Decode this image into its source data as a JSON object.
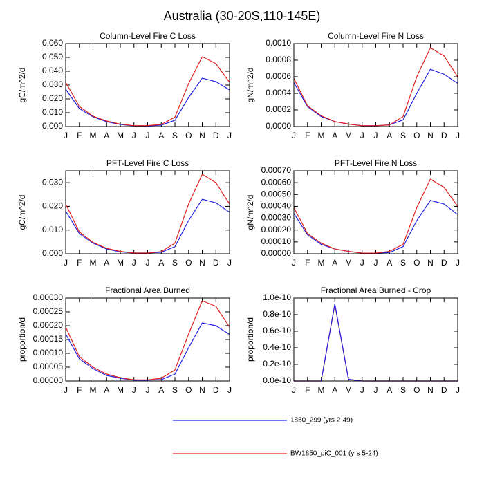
{
  "title": "Australia (30-20S,110-145E)",
  "legend": [
    {
      "name": "1850_299 (yrs 2-49)",
      "color": "#2020e0"
    },
    {
      "name": "BW1850_piC_001 (yrs 5-24)",
      "color": "#e02020"
    }
  ],
  "chart_data": [
    {
      "type": "line",
      "title": "Column-Level Fire C Loss",
      "y_label": "gC/m^2/d",
      "categories": [
        "J",
        "F",
        "M",
        "A",
        "M",
        "J",
        "J",
        "A",
        "S",
        "O",
        "N",
        "D",
        "J"
      ],
      "ylim": [
        0,
        0.06
      ],
      "yticks": [
        {
          "value": 0,
          "label": "0.000"
        },
        {
          "value": 0.01,
          "label": "0.010"
        },
        {
          "value": 0.02,
          "label": "0.020"
        },
        {
          "value": 0.03,
          "label": "0.030"
        },
        {
          "value": 0.04,
          "label": "0.040"
        },
        {
          "value": 0.05,
          "label": "0.050"
        },
        {
          "value": 0.06,
          "label": "0.060"
        }
      ],
      "series": [
        {
          "color": "#2020e0",
          "values": [
            0.027,
            0.013,
            0.007,
            0.0035,
            0.0015,
            0.0005,
            0.0005,
            0.001,
            0.0045,
            0.021,
            0.035,
            0.0325,
            0.0265
          ]
        },
        {
          "color": "#e02020",
          "values": [
            0.032,
            0.0145,
            0.0075,
            0.004,
            0.0018,
            0.0006,
            0.0007,
            0.0015,
            0.0068,
            0.031,
            0.0505,
            0.0455,
            0.032
          ]
        }
      ]
    },
    {
      "type": "line",
      "title": "Column-Level Fire N Loss",
      "y_label": "gN/m^2/d",
      "categories": [
        "J",
        "F",
        "M",
        "A",
        "M",
        "J",
        "J",
        "A",
        "S",
        "O",
        "N",
        "D",
        "J"
      ],
      "ylim": [
        0,
        0.001
      ],
      "yticks": [
        {
          "value": 0,
          "label": "0.0000"
        },
        {
          "value": 0.0002,
          "label": "0.0002"
        },
        {
          "value": 0.0004,
          "label": "0.0004"
        },
        {
          "value": 0.0006,
          "label": "0.0006"
        },
        {
          "value": 0.0008,
          "label": "0.0008"
        },
        {
          "value": 0.001,
          "label": "0.0010"
        }
      ],
      "series": [
        {
          "color": "#2020e0",
          "values": [
            0.00053,
            0.00024,
            0.00012,
            6e-05,
            3e-05,
            1e-05,
            1e-05,
            2e-05,
            8e-05,
            0.0004,
            0.00069,
            0.00063,
            0.00052
          ]
        },
        {
          "color": "#e02020",
          "values": [
            0.00058,
            0.00025,
            0.00013,
            6e-05,
            3e-05,
            1e-05,
            1e-05,
            2e-05,
            0.00012,
            0.0006,
            0.00095,
            0.00085,
            0.0006
          ]
        }
      ]
    },
    {
      "type": "line",
      "title": "PFT-Level Fire C Loss",
      "y_label": "gC/m^2/d",
      "categories": [
        "J",
        "F",
        "M",
        "A",
        "M",
        "J",
        "J",
        "A",
        "S",
        "O",
        "N",
        "D",
        "J"
      ],
      "ylim": [
        0,
        0.035
      ],
      "yticks": [
        {
          "value": 0,
          "label": "0.000"
        },
        {
          "value": 0.01,
          "label": "0.010"
        },
        {
          "value": 0.02,
          "label": "0.020"
        },
        {
          "value": 0.03,
          "label": "0.030"
        }
      ],
      "series": [
        {
          "color": "#2020e0",
          "values": [
            0.018,
            0.0085,
            0.0045,
            0.002,
            0.0008,
            0.0003,
            0.0003,
            0.0006,
            0.003,
            0.014,
            0.023,
            0.0215,
            0.0175
          ]
        },
        {
          "color": "#e02020",
          "values": [
            0.021,
            0.0092,
            0.0048,
            0.0023,
            0.001,
            0.0003,
            0.0003,
            0.0009,
            0.0045,
            0.021,
            0.0335,
            0.03,
            0.021
          ]
        }
      ]
    },
    {
      "type": "line",
      "title": "PFT-Level Fire N Loss",
      "y_label": "gN/m^2/d",
      "categories": [
        "J",
        "F",
        "M",
        "A",
        "M",
        "J",
        "J",
        "A",
        "S",
        "O",
        "N",
        "D",
        "J"
      ],
      "ylim": [
        0,
        0.0007
      ],
      "yticks": [
        {
          "value": 0,
          "label": "0.00000"
        },
        {
          "value": 0.0001,
          "label": "0.00010"
        },
        {
          "value": 0.0002,
          "label": "0.00020"
        },
        {
          "value": 0.0003,
          "label": "0.00030"
        },
        {
          "value": 0.0004,
          "label": "0.00040"
        },
        {
          "value": 0.0005,
          "label": "0.00050"
        },
        {
          "value": 0.0006,
          "label": "0.00060"
        },
        {
          "value": 0.0007,
          "label": "0.00070"
        }
      ],
      "series": [
        {
          "color": "#2020e0",
          "values": [
            0.00034,
            0.00016,
            8e-05,
            4e-05,
            2e-05,
            5e-06,
            5e-06,
            1e-05,
            6e-05,
            0.00028,
            0.00045,
            0.00042,
            0.00033
          ]
        },
        {
          "color": "#e02020",
          "values": [
            0.00039,
            0.00017,
            9e-05,
            4e-05,
            2e-05,
            5e-06,
            5e-06,
            2e-05,
            8e-05,
            0.00039,
            0.00063,
            0.00056,
            0.0004
          ]
        }
      ]
    },
    {
      "type": "line",
      "title": "Fractional Area Burned",
      "y_label": "proportion/d",
      "categories": [
        "J",
        "F",
        "M",
        "A",
        "M",
        "J",
        "J",
        "A",
        "S",
        "O",
        "N",
        "D",
        "J"
      ],
      "ylim": [
        0,
        0.0003
      ],
      "yticks": [
        {
          "value": 0,
          "label": "0.00000"
        },
        {
          "value": 5e-05,
          "label": "0.00005"
        },
        {
          "value": 0.0001,
          "label": "0.00010"
        },
        {
          "value": 0.00015,
          "label": "0.00015"
        },
        {
          "value": 0.0002,
          "label": "0.00020"
        },
        {
          "value": 0.00025,
          "label": "0.00025"
        },
        {
          "value": 0.0003,
          "label": "0.00030"
        }
      ],
      "series": [
        {
          "color": "#2020e0",
          "values": [
            0.00017,
            8e-05,
            4.5e-05,
            2e-05,
            1e-05,
            3e-06,
            3e-06,
            5e-06,
            2.5e-05,
            0.00012,
            0.00021,
            0.0002,
            0.000168
          ]
        },
        {
          "color": "#e02020",
          "values": [
            0.000195,
            8.8e-05,
            5e-05,
            2.5e-05,
            1.2e-05,
            4e-06,
            4e-06,
            1e-05,
            4e-05,
            0.00017,
            0.00029,
            0.00027,
            0.000195
          ]
        }
      ]
    },
    {
      "type": "line",
      "title": "Fractional Area Burned - Crop",
      "y_label": "proportion/d",
      "categories": [
        "J",
        "F",
        "M",
        "A",
        "M",
        "J",
        "J",
        "A",
        "S",
        "O",
        "N",
        "D",
        "J"
      ],
      "ylim": [
        0,
        1e-10
      ],
      "yticks": [
        {
          "value": 0,
          "label": "0.0e-10"
        },
        {
          "value": 2e-11,
          "label": "0.2e-10"
        },
        {
          "value": 4e-11,
          "label": "0.4e-10"
        },
        {
          "value": 6e-11,
          "label": "0.6e-10"
        },
        {
          "value": 8e-11,
          "label": "0.8e-10"
        },
        {
          "value": 1e-10,
          "label": "1.0e-10"
        }
      ],
      "series": [
        {
          "color": "#e02020",
          "values": [
            0,
            0,
            0,
            9.2e-11,
            2e-12,
            0,
            0,
            0,
            0,
            0,
            0,
            0,
            0
          ]
        },
        {
          "color": "#2020e0",
          "values": [
            0,
            0,
            0,
            9.3e-11,
            2e-12,
            0,
            0,
            0,
            0,
            0,
            0,
            0,
            0
          ]
        }
      ]
    }
  ]
}
